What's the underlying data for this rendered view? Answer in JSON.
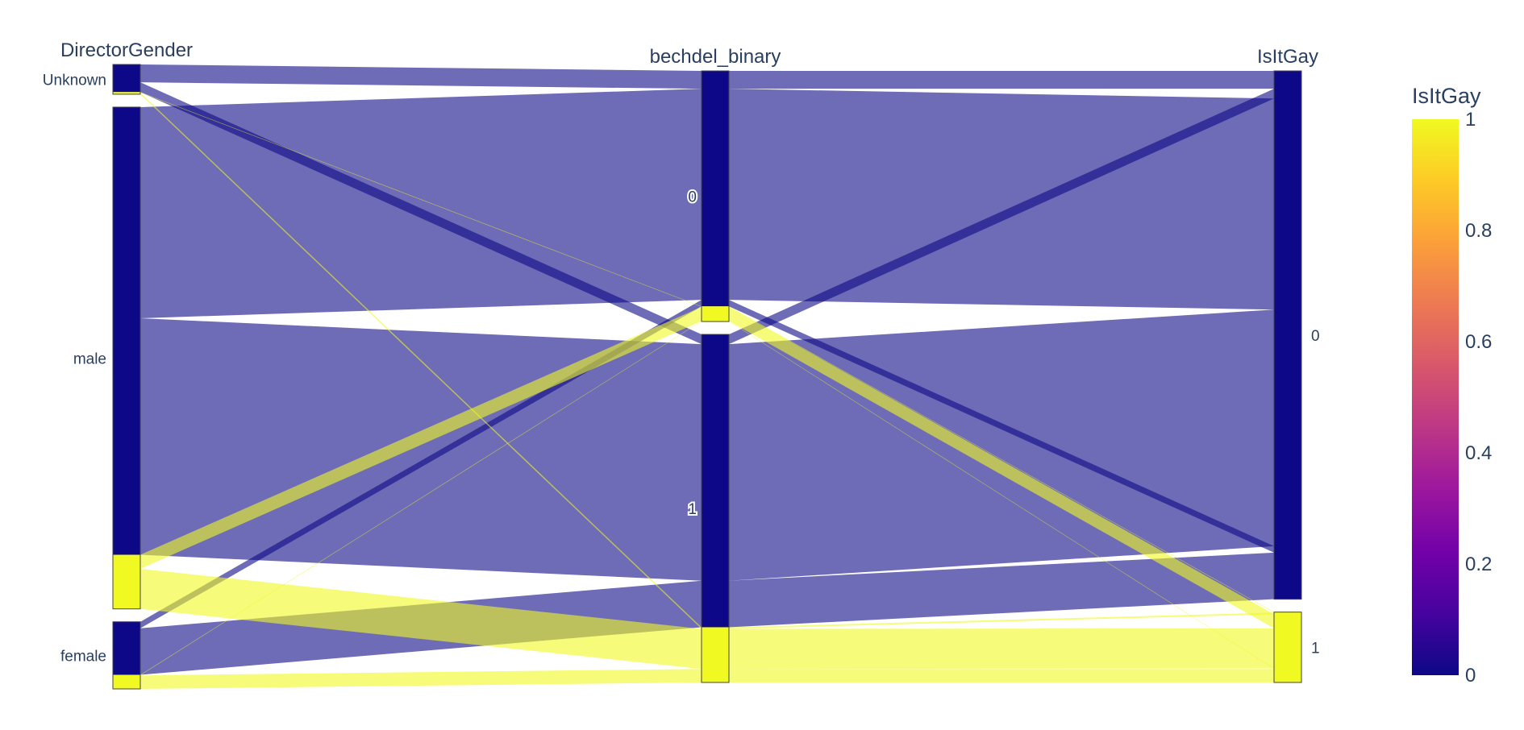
{
  "chart_data": {
    "type": "parallel_categories",
    "color_attribute": "IsItGay",
    "colorscale": [
      "#0d0887",
      "#46039f",
      "#7201a8",
      "#9c179e",
      "#bd3786",
      "#d8576b",
      "#ed7953",
      "#fb9f3a",
      "#fdca26",
      "#f0f921"
    ],
    "line_colors": {
      "0": "#0d0887",
      "1": "#f0f921"
    },
    "dimensions": [
      {
        "label": "DirectorGender",
        "categories": [
          "Unknown",
          "male",
          "female"
        ]
      },
      {
        "label": "bechdel_binary",
        "categories": [
          "0",
          "1"
        ]
      },
      {
        "label": "IsItGay",
        "categories": [
          "0",
          "1"
        ]
      }
    ],
    "paths": [
      {
        "DirectorGender": "Unknown",
        "bechdel_binary": "0",
        "IsItGay": "0",
        "count": 33
      },
      {
        "DirectorGender": "Unknown",
        "bechdel_binary": "1",
        "IsItGay": "0",
        "count": 18
      },
      {
        "DirectorGender": "Unknown",
        "bechdel_binary": "0",
        "IsItGay": "1",
        "count": 1
      },
      {
        "DirectorGender": "Unknown",
        "bechdel_binary": "1",
        "IsItGay": "1",
        "count": 3
      },
      {
        "DirectorGender": "male",
        "bechdel_binary": "0",
        "IsItGay": "0",
        "count": 390
      },
      {
        "DirectorGender": "male",
        "bechdel_binary": "1",
        "IsItGay": "0",
        "count": 437
      },
      {
        "DirectorGender": "male",
        "bechdel_binary": "0",
        "IsItGay": "1",
        "count": 26
      },
      {
        "DirectorGender": "male",
        "bechdel_binary": "1",
        "IsItGay": "1",
        "count": 74
      },
      {
        "DirectorGender": "female",
        "bechdel_binary": "0",
        "IsItGay": "0",
        "count": 12
      },
      {
        "DirectorGender": "female",
        "bechdel_binary": "1",
        "IsItGay": "0",
        "count": 86
      },
      {
        "DirectorGender": "female",
        "bechdel_binary": "0",
        "IsItGay": "1",
        "count": 1
      },
      {
        "DirectorGender": "female",
        "bechdel_binary": "1",
        "IsItGay": "1",
        "count": 25
      }
    ],
    "colorbar": {
      "title": "IsItGay",
      "range": [
        0,
        1
      ],
      "ticks": [
        "0",
        "0.2",
        "0.4",
        "0.6",
        "0.8",
        "1"
      ]
    }
  }
}
